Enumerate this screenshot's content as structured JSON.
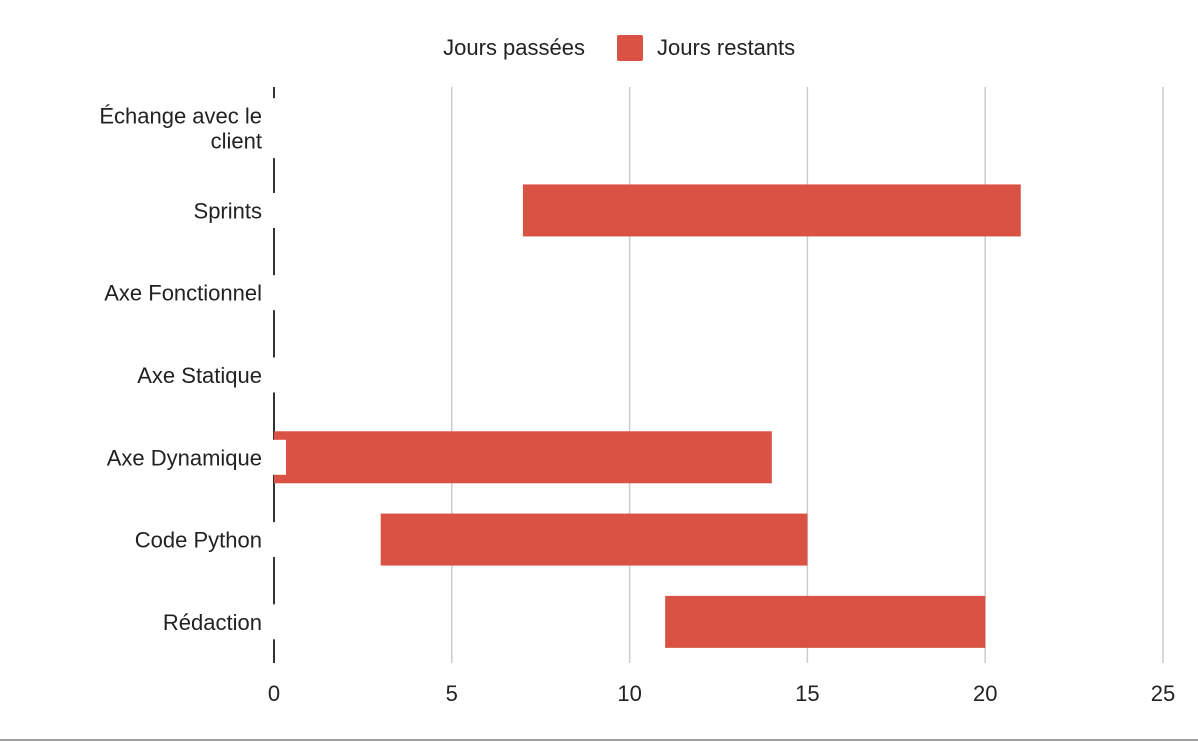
{
  "chart_data": {
    "type": "bar",
    "orientation": "horizontal",
    "stacked": true,
    "categories": [
      "Échange avec le client",
      "Sprints",
      "Axe Fonctionnel",
      "Axe Statique",
      "Axe Dynamique",
      "Code Python",
      "Rédaction"
    ],
    "category_lines": [
      [
        "Échange avec le",
        "client"
      ],
      [
        "Sprints"
      ],
      [
        "Axe Fonctionnel"
      ],
      [
        "Axe Statique"
      ],
      [
        "Axe Dynamique"
      ],
      [
        "Code Python"
      ],
      [
        "Rédaction"
      ]
    ],
    "series": [
      {
        "name": "Jours passées",
        "color": "#ffffff",
        "visible": false,
        "values": [
          0,
          7,
          0,
          0,
          0,
          3,
          11
        ]
      },
      {
        "name": "Jours restants",
        "color": "#d95243",
        "visible": true,
        "values": [
          0,
          14,
          0,
          0,
          14,
          12,
          9
        ]
      }
    ],
    "xlim": [
      0,
      25
    ],
    "xticks": [
      "0",
      "5",
      "10",
      "15",
      "20",
      "25"
    ],
    "grid": true,
    "legend_position": "top"
  }
}
